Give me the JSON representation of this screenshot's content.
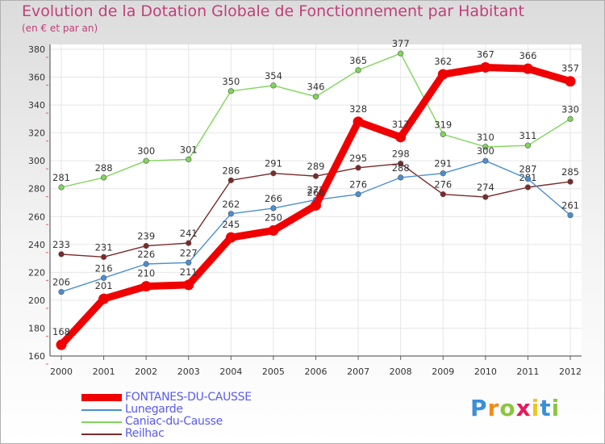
{
  "chart_data": {
    "type": "line",
    "title": "Evolution de la Dotation Globale de Fonctionnement par Habitant",
    "subtitle": "(en € et par an)",
    "xlabel": "",
    "ylabel": "",
    "categories": [
      "2000",
      "2001",
      "2002",
      "2003",
      "2004",
      "2005",
      "2006",
      "2007",
      "2008",
      "2009",
      "2010",
      "2011",
      "2012"
    ],
    "ylim": [
      160,
      380
    ],
    "yticks": [
      160,
      180,
      200,
      220,
      240,
      260,
      280,
      300,
      320,
      340,
      360,
      380
    ],
    "grid": true,
    "series": [
      {
        "name": "Caniac-du-Causse",
        "color": "#7fd65a",
        "values": [
          281,
          288,
          300,
          301,
          350,
          354,
          346,
          365,
          377,
          319,
          310,
          311,
          330
        ]
      },
      {
        "name": "Reilhac",
        "color": "#7a2a2a",
        "values": [
          233,
          231,
          239,
          241,
          286,
          291,
          289,
          295,
          298,
          276,
          274,
          281,
          285
        ]
      },
      {
        "name": "Lunegarde",
        "color": "#4a8fd0",
        "values": [
          206,
          216,
          226,
          227,
          262,
          266,
          272,
          276,
          288,
          291,
          300,
          287,
          261
        ]
      },
      {
        "name": "FONTANES-DU-CAUSSE",
        "color": "#f00000",
        "values": [
          168,
          201,
          210,
          211,
          245,
          250,
          268,
          328,
          317,
          362,
          367,
          366,
          357
        ]
      }
    ]
  },
  "legend": [
    {
      "label": "FONTANES-DU-CAUSSE",
      "color": "#f00000"
    },
    {
      "label": "Lunegarde",
      "color": "#4a8fd0"
    },
    {
      "label": "Caniac-du-Causse",
      "color": "#7fd65a"
    },
    {
      "label": "Reilhac",
      "color": "#7a2a2a"
    }
  ],
  "brand": {
    "letters": [
      "P",
      "r",
      "o",
      "x",
      "i",
      "t",
      "i"
    ],
    "colors": [
      "#3a8fd8",
      "#f08c1c",
      "#8cc63f",
      "#e6195a",
      "#f0c419",
      "#3a8fd8",
      "#8cc63f"
    ]
  }
}
